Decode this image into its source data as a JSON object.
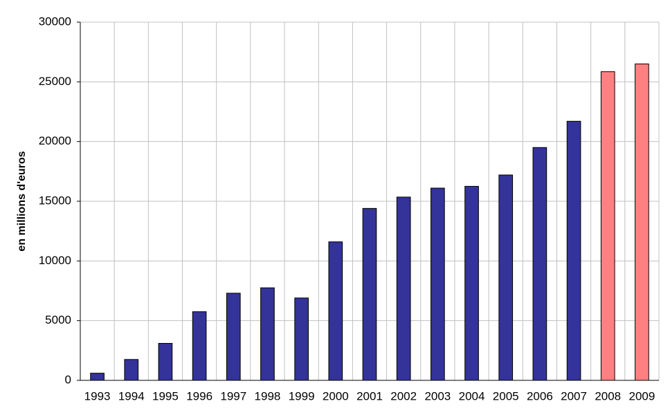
{
  "chart_data": {
    "type": "bar",
    "y_label": "en millions d'euros",
    "categories": [
      "1993",
      "1994",
      "1995",
      "1996",
      "1997",
      "1998",
      "1999",
      "2000",
      "2001",
      "2002",
      "2003",
      "2004",
      "2005",
      "2006",
      "2007",
      "2008",
      "2009"
    ],
    "values": [
      600,
      1750,
      3100,
      5750,
      7300,
      7750,
      6900,
      11600,
      14400,
      15350,
      16100,
      16250,
      17200,
      19500,
      21700,
      25850,
      26500
    ],
    "colors": [
      "#333399",
      "#333399",
      "#333399",
      "#333399",
      "#333399",
      "#333399",
      "#333399",
      "#333399",
      "#333399",
      "#333399",
      "#333399",
      "#333399",
      "#333399",
      "#333399",
      "#333399",
      "#ff8080",
      "#ff8080"
    ],
    "ylim": [
      0,
      30000
    ],
    "yticks": [
      0,
      5000,
      10000,
      15000,
      20000,
      25000,
      30000
    ],
    "grid": true
  }
}
